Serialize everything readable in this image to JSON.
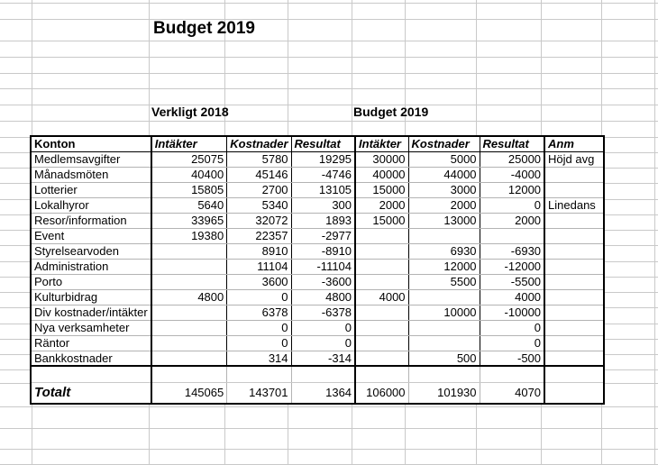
{
  "title": "Budget 2019",
  "section_headers": {
    "actual": "Verkligt 2018",
    "budget": "Budget 2019"
  },
  "table": {
    "headers": {
      "konton": "Konton",
      "intakter_2018": "Intäkter",
      "kostnader_2018": "Kostnader",
      "resultat_2018": "Resultat",
      "intakter_2019": "Intäkter",
      "kostnader_2019": "Kostnader",
      "resultat_2019": "Resultat",
      "anm": "Anm"
    },
    "rows": [
      {
        "name": "Medlemsavgifter",
        "a_int": "25075",
        "a_kost": "5780",
        "a_res": "19295",
        "b_int": "30000",
        "b_kost": "5000",
        "b_res": "25000",
        "anm": "Höjd avg"
      },
      {
        "name": "Månadsmöten",
        "a_int": "40400",
        "a_kost": "45146",
        "a_res": "-4746",
        "b_int": "40000",
        "b_kost": "44000",
        "b_res": "-4000",
        "anm": ""
      },
      {
        "name": "Lotterier",
        "a_int": "15805",
        "a_kost": "2700",
        "a_res": "13105",
        "b_int": "15000",
        "b_kost": "3000",
        "b_res": "12000",
        "anm": ""
      },
      {
        "name": "Lokalhyror",
        "a_int": "5640",
        "a_kost": "5340",
        "a_res": "300",
        "b_int": "2000",
        "b_kost": "2000",
        "b_res": "0",
        "anm": "Linedans"
      },
      {
        "name": "Resor/information",
        "a_int": "33965",
        "a_kost": "32072",
        "a_res": "1893",
        "b_int": "15000",
        "b_kost": "13000",
        "b_res": "2000",
        "anm": ""
      },
      {
        "name": "Event",
        "a_int": "19380",
        "a_kost": "22357",
        "a_res": "-2977",
        "b_int": "",
        "b_kost": "",
        "b_res": "",
        "anm": ""
      },
      {
        "name": "Styrelsearvoden",
        "a_int": "",
        "a_kost": "8910",
        "a_res": "-8910",
        "b_int": "",
        "b_kost": "6930",
        "b_res": "-6930",
        "anm": ""
      },
      {
        "name": "Administration",
        "a_int": "",
        "a_kost": "11104",
        "a_res": "-11104",
        "b_int": "",
        "b_kost": "12000",
        "b_res": "-12000",
        "anm": ""
      },
      {
        "name": "Porto",
        "a_int": "",
        "a_kost": "3600",
        "a_res": "-3600",
        "b_int": "",
        "b_kost": "5500",
        "b_res": "-5500",
        "anm": ""
      },
      {
        "name": "Kulturbidrag",
        "a_int": "4800",
        "a_kost": "0",
        "a_res": "4800",
        "b_int": "4000",
        "b_kost": "",
        "b_res": "4000",
        "anm": ""
      },
      {
        "name": "Div kostnader/intäkter",
        "a_int": "",
        "a_kost": "6378",
        "a_res": "-6378",
        "b_int": "",
        "b_kost": "10000",
        "b_res": "-10000",
        "anm": ""
      },
      {
        "name": "Nya verksamheter",
        "a_int": "",
        "a_kost": "0",
        "a_res": "0",
        "b_int": "",
        "b_kost": "",
        "b_res": "0",
        "anm": ""
      },
      {
        "name": "Räntor",
        "a_int": "",
        "a_kost": "0",
        "a_res": "0",
        "b_int": "",
        "b_kost": "",
        "b_res": "0",
        "anm": ""
      },
      {
        "name": "Bankkostnader",
        "a_int": "",
        "a_kost": "314",
        "a_res": "-314",
        "b_int": "",
        "b_kost": "500",
        "b_res": "-500",
        "anm": ""
      }
    ],
    "total": {
      "label": "Totalt",
      "a_int": "145065",
      "a_kost": "143701",
      "a_res": "1364",
      "b_int": "106000",
      "b_kost": "101930",
      "b_res": "4070",
      "anm": ""
    }
  },
  "colors": {
    "background": "#ffffff",
    "text": "#000000",
    "table_border": "#000000",
    "row_gridline": "#b3b3b3",
    "sheet_gridline": "#c9c9c9"
  }
}
